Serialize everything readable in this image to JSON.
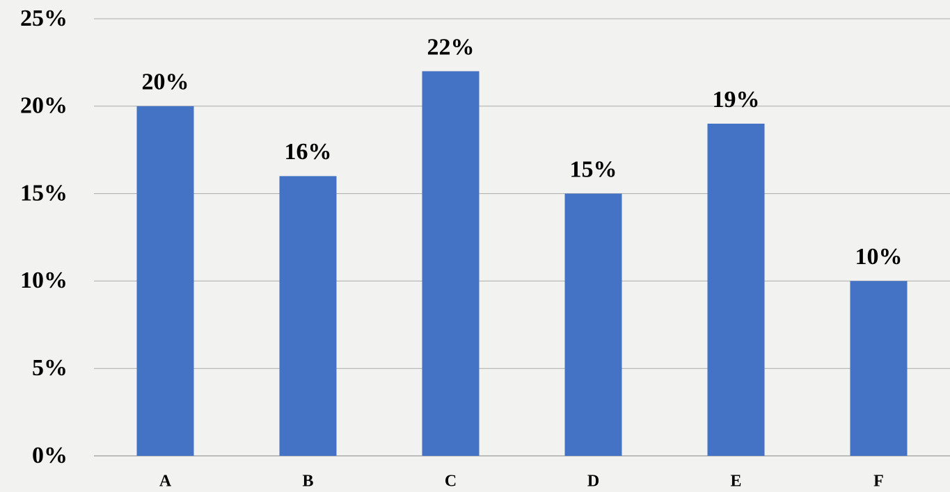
{
  "chart_data": {
    "type": "bar",
    "categories": [
      "A",
      "B",
      "C",
      "D",
      "E",
      "F"
    ],
    "values": [
      20,
      16,
      22,
      15,
      19,
      10
    ],
    "value_labels": [
      "20%",
      "16%",
      "22%",
      "15%",
      "19%",
      "10%"
    ],
    "color": "#4472c4",
    "ylim": [
      0,
      25
    ],
    "yticks": [
      {
        "value": 0,
        "label": "0%"
      },
      {
        "value": 5,
        "label": "5%"
      },
      {
        "value": 10,
        "label": "10%"
      },
      {
        "value": 15,
        "label": "15%"
      },
      {
        "value": 20,
        "label": "20%"
      },
      {
        "value": 25,
        "label": "25%"
      }
    ],
    "grid": true
  }
}
